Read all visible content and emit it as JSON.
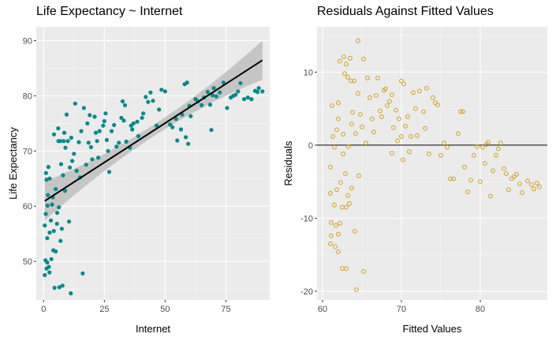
{
  "chart_data": [
    {
      "type": "scatter",
      "title": "Life Expectancy ~ Internet",
      "xlabel": "Internet",
      "ylabel": "Life Expectancy",
      "xlim": [
        -3,
        93
      ],
      "ylim": [
        43.0,
        92.5
      ],
      "xticks": [
        0,
        25,
        50,
        75
      ],
      "yticks": [
        50,
        60,
        70,
        80,
        90
      ],
      "grid": true,
      "point_color": "#008B8B",
      "fit_line": {
        "method": "linear",
        "intercept": 60.8,
        "slope": 0.285,
        "x_range": [
          0.5,
          90
        ],
        "color": "#000000",
        "band_color": "#BEBEBE"
      },
      "points": [
        [
          0.5,
          47.5
        ],
        [
          0.8,
          50.2
        ],
        [
          0.5,
          56.5
        ],
        [
          0.9,
          58.6
        ],
        [
          1.0,
          66.0
        ],
        [
          1.2,
          64.8
        ],
        [
          1.2,
          48.7
        ],
        [
          1.5,
          49.8
        ],
        [
          1.5,
          54.2
        ],
        [
          1.6,
          60.1
        ],
        [
          1.8,
          62.0
        ],
        [
          2.0,
          67.1
        ],
        [
          2.2,
          49.0
        ],
        [
          2.4,
          48.0
        ],
        [
          2.5,
          65.0
        ],
        [
          2.5,
          55.2
        ],
        [
          3.0,
          57.4
        ],
        [
          3.2,
          50.4
        ],
        [
          3.5,
          60.3
        ],
        [
          3.8,
          61.6
        ],
        [
          4.0,
          52.0
        ],
        [
          4.2,
          55.5
        ],
        [
          4.3,
          73.0
        ],
        [
          4.5,
          45.2
        ],
        [
          5.0,
          51.8
        ],
        [
          5.0,
          63.1
        ],
        [
          5.5,
          56.8
        ],
        [
          5.6,
          58.8
        ],
        [
          6.0,
          74.1
        ],
        [
          6.1,
          71.8
        ],
        [
          6.3,
          59.8
        ],
        [
          6.5,
          45.3
        ],
        [
          7.0,
          71.8
        ],
        [
          7.0,
          53.7
        ],
        [
          7.2,
          67.6
        ],
        [
          7.5,
          55.9
        ],
        [
          7.8,
          45.6
        ],
        [
          8.0,
          65.6
        ],
        [
          8.3,
          71.8
        ],
        [
          8.5,
          73.3
        ],
        [
          8.8,
          62.8
        ],
        [
          9.0,
          70.6
        ],
        [
          9.5,
          76.6
        ],
        [
          10.0,
          71.8
        ],
        [
          10.5,
          57.2
        ],
        [
          10.8,
          67.0
        ],
        [
          11.2,
          44.2
        ],
        [
          11.4,
          72.4
        ],
        [
          11.8,
          68.2
        ],
        [
          12.5,
          69.5
        ],
        [
          13.0,
          78.6
        ],
        [
          13.6,
          66.4
        ],
        [
          14.5,
          71.6
        ],
        [
          15.0,
          65.2
        ],
        [
          15.5,
          73.6
        ],
        [
          16.1,
          47.8
        ],
        [
          16.6,
          77.8
        ],
        [
          17.5,
          67.5
        ],
        [
          18.0,
          75.0
        ],
        [
          18.5,
          71.5
        ],
        [
          19.0,
          76.5
        ],
        [
          19.5,
          70.7
        ],
        [
          20.0,
          68.5
        ],
        [
          21.0,
          76.2
        ],
        [
          21.5,
          73.3
        ],
        [
          22.0,
          71.8
        ],
        [
          22.5,
          68.8
        ],
        [
          23.0,
          73.6
        ],
        [
          24.5,
          74.6
        ],
        [
          25.0,
          75.4
        ],
        [
          25.5,
          76.8
        ],
        [
          26.0,
          72.0
        ],
        [
          26.5,
          70.0
        ],
        [
          27.0,
          66.2
        ],
        [
          28.0,
          73.6
        ],
        [
          29.0,
          74.7
        ],
        [
          30.0,
          70.8
        ],
        [
          31.0,
          71.5
        ],
        [
          32.0,
          76.0
        ],
        [
          32.5,
          79.0
        ],
        [
          33.0,
          75.5
        ],
        [
          33.5,
          78.3
        ],
        [
          34.0,
          71.7
        ],
        [
          35.5,
          70.6
        ],
        [
          36.0,
          74.6
        ],
        [
          36.5,
          73.9
        ],
        [
          37.0,
          75.0
        ],
        [
          38.5,
          75.3
        ],
        [
          39.0,
          72.7
        ],
        [
          40.5,
          76.0
        ],
        [
          41.0,
          76.8
        ],
        [
          42.0,
          79.8
        ],
        [
          43.0,
          78.9
        ],
        [
          44.0,
          80.6
        ],
        [
          45.0,
          79.1
        ],
        [
          46.5,
          74.6
        ],
        [
          47.5,
          77.5
        ],
        [
          48.5,
          81.1
        ],
        [
          50.0,
          80.8
        ],
        [
          52.0,
          74.8
        ],
        [
          53.0,
          74.3
        ],
        [
          54.5,
          75.8
        ],
        [
          55.0,
          71.9
        ],
        [
          56.5,
          73.9
        ],
        [
          57.0,
          76.6
        ],
        [
          58.0,
          82.1
        ],
        [
          58.5,
          72.5
        ],
        [
          59.0,
          82.4
        ],
        [
          59.5,
          71.3
        ],
        [
          60.0,
          78.2
        ],
        [
          60.5,
          76.3
        ],
        [
          62.5,
          79.4
        ],
        [
          63.5,
          79.0
        ],
        [
          65.0,
          78.3
        ],
        [
          66.0,
          79.7
        ],
        [
          67.5,
          80.7
        ],
        [
          68.5,
          78.4
        ],
        [
          69.0,
          73.8
        ],
        [
          69.5,
          80.1
        ],
        [
          70.0,
          81.4
        ],
        [
          71.0,
          79.9
        ],
        [
          72.5,
          80.6
        ],
        [
          74.0,
          82.4
        ],
        [
          75.5,
          77.8
        ],
        [
          77.0,
          79.7
        ],
        [
          78.0,
          80.0
        ],
        [
          79.0,
          80.2
        ],
        [
          80.0,
          80.8
        ],
        [
          81.0,
          82.3
        ],
        [
          82.5,
          79.4
        ],
        [
          84.0,
          79.7
        ],
        [
          85.5,
          79.4
        ],
        [
          87.0,
          80.9
        ],
        [
          88.0,
          80.7
        ],
        [
          88.5,
          81.4
        ],
        [
          90.0,
          80.8
        ]
      ]
    },
    {
      "type": "scatter",
      "title": "Residuals Against Fitted Values",
      "xlabel": "Fitted Values",
      "ylabel": "Residuals",
      "xlim": [
        59.3,
        88.5
      ],
      "ylim": [
        -21.2,
        16.2
      ],
      "xticks": [
        60,
        70,
        80
      ],
      "yticks": [
        -20,
        -10,
        0,
        10
      ],
      "grid": true,
      "point_color": "#D4A017",
      "hline": {
        "y": 0,
        "color": "#000000"
      },
      "points": [
        [
          61.0,
          -13.5
        ],
        [
          61.0,
          -6.6
        ],
        [
          61.0,
          -3.0
        ],
        [
          61.1,
          -12.4
        ],
        [
          61.1,
          -10.6
        ],
        [
          61.2,
          5.4
        ],
        [
          61.3,
          1.2
        ],
        [
          61.5,
          -0.3
        ],
        [
          61.5,
          -8.2
        ],
        [
          61.6,
          -13.9
        ],
        [
          61.7,
          -11.0
        ],
        [
          61.8,
          2.1
        ],
        [
          61.8,
          -6.1
        ],
        [
          62.0,
          3.6
        ],
        [
          62.0,
          5.8
        ],
        [
          62.0,
          -12.2
        ],
        [
          62.0,
          -14.6
        ],
        [
          62.2,
          11.5
        ],
        [
          62.2,
          -10.7
        ],
        [
          62.3,
          -5.1
        ],
        [
          62.5,
          -8.5
        ],
        [
          62.5,
          -16.9
        ],
        [
          62.6,
          1.5
        ],
        [
          62.6,
          -1.2
        ],
        [
          62.7,
          12.1
        ],
        [
          62.8,
          9.8
        ],
        [
          62.9,
          -3.9
        ],
        [
          63.0,
          11.1
        ],
        [
          63.0,
          -8.5
        ],
        [
          63.0,
          -16.9
        ],
        [
          63.2,
          9.3
        ],
        [
          63.2,
          -6.9
        ],
        [
          63.3,
          -0.2
        ],
        [
          63.4,
          -8.0
        ],
        [
          63.5,
          11.9
        ],
        [
          63.6,
          8.8
        ],
        [
          63.7,
          2.9
        ],
        [
          63.7,
          -5.9
        ],
        [
          63.8,
          4.5
        ],
        [
          64.0,
          8.8
        ],
        [
          64.1,
          -11.8
        ],
        [
          64.2,
          1.6
        ],
        [
          64.3,
          -19.8
        ],
        [
          64.5,
          14.3
        ],
        [
          64.5,
          7.1
        ],
        [
          64.6,
          -4.2
        ],
        [
          64.8,
          4.2
        ],
        [
          65.0,
          2.5
        ],
        [
          65.2,
          11.8
        ],
        [
          65.2,
          -17.3
        ],
        [
          65.5,
          0.3
        ],
        [
          65.7,
          9.2
        ],
        [
          66.0,
          6.5
        ],
        [
          66.3,
          3.6
        ],
        [
          66.5,
          1.8
        ],
        [
          66.8,
          6.8
        ],
        [
          67.0,
          9.2
        ],
        [
          67.3,
          4.7
        ],
        [
          67.5,
          3.9
        ],
        [
          67.8,
          7.5
        ],
        [
          68.0,
          7.7
        ],
        [
          68.2,
          5.4
        ],
        [
          68.5,
          6.0
        ],
        [
          68.8,
          -1.1
        ],
        [
          68.8,
          6.9
        ],
        [
          69.0,
          2.4
        ],
        [
          69.3,
          4.8
        ],
        [
          69.5,
          0.6
        ],
        [
          69.7,
          3.6
        ],
        [
          70.0,
          1.2
        ],
        [
          70.0,
          8.8
        ],
        [
          70.2,
          -2.0
        ],
        [
          70.3,
          8.4
        ],
        [
          70.5,
          2.6
        ],
        [
          70.8,
          3.9
        ],
        [
          71.0,
          -0.9
        ],
        [
          71.2,
          1.2
        ],
        [
          71.5,
          7.2
        ],
        [
          71.8,
          5.0
        ],
        [
          72.0,
          1.3
        ],
        [
          72.3,
          7.4
        ],
        [
          72.8,
          4.6
        ],
        [
          73.0,
          2.3
        ],
        [
          73.2,
          7.8
        ],
        [
          73.5,
          -1.2
        ],
        [
          74.0,
          6.5
        ],
        [
          74.3,
          5.8
        ],
        [
          74.6,
          5.5
        ],
        [
          75.0,
          -1.4
        ],
        [
          75.4,
          0.3
        ],
        [
          75.8,
          -0.3
        ],
        [
          76.2,
          -4.6
        ],
        [
          76.6,
          -4.6
        ],
        [
          77.2,
          1.6
        ],
        [
          77.5,
          4.6
        ],
        [
          77.8,
          4.6
        ],
        [
          78.0,
          -3.0
        ],
        [
          78.4,
          -6.4
        ],
        [
          78.8,
          -4.8
        ],
        [
          79.2,
          -1.4
        ],
        [
          79.6,
          -0.2
        ],
        [
          80.0,
          -5.0
        ],
        [
          80.3,
          -0.3
        ],
        [
          80.6,
          -2.5
        ],
        [
          80.8,
          0.1
        ],
        [
          81.0,
          0.4
        ],
        [
          81.3,
          -7.0
        ],
        [
          81.6,
          -3.5
        ],
        [
          82.0,
          -1.4
        ],
        [
          82.3,
          -0.5
        ],
        [
          82.6,
          0.3
        ],
        [
          83.0,
          -3.2
        ],
        [
          83.3,
          -3.9
        ],
        [
          83.6,
          -6.1
        ],
        [
          84.0,
          -4.6
        ],
        [
          84.3,
          -4.3
        ],
        [
          84.6,
          -4.0
        ],
        [
          85.0,
          -5.3
        ],
        [
          85.3,
          -6.5
        ],
        [
          86.0,
          -4.9
        ],
        [
          86.5,
          -5.4
        ],
        [
          86.8,
          -6.0
        ],
        [
          87.2,
          -5.2
        ],
        [
          87.5,
          -5.7
        ]
      ]
    }
  ]
}
